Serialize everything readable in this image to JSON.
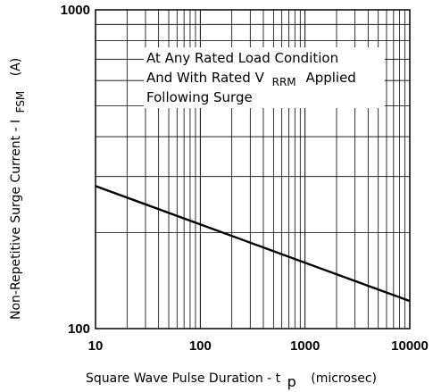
{
  "chart_data": {
    "type": "line",
    "x_scale": "log",
    "y_scale": "log",
    "xlim": [
      10,
      10000
    ],
    "ylim": [
      100,
      1000
    ],
    "grid": true,
    "x_tick_labels": [
      "10",
      "100",
      "1000",
      "10000"
    ],
    "y_tick_labels": [
      "100",
      "1000"
    ],
    "xlabel": {
      "text": "Square Wave Pulse Duration - t",
      "subscript": "p",
      "unit": "(microsec)"
    },
    "ylabel": {
      "text": "Non-Repetitive Surge Current - I",
      "subscript": "FSM",
      "unit": "(A)"
    },
    "annotation": {
      "line1": "At Any Rated Load Condition",
      "line2_pre": "And With Rated V",
      "line2_sub": "RRM",
      "line2_post": "Applied",
      "line3": "Following Surge"
    },
    "series": [
      {
        "x": [
          10,
          10000
        ],
        "y": [
          280,
          122
        ]
      }
    ]
  }
}
